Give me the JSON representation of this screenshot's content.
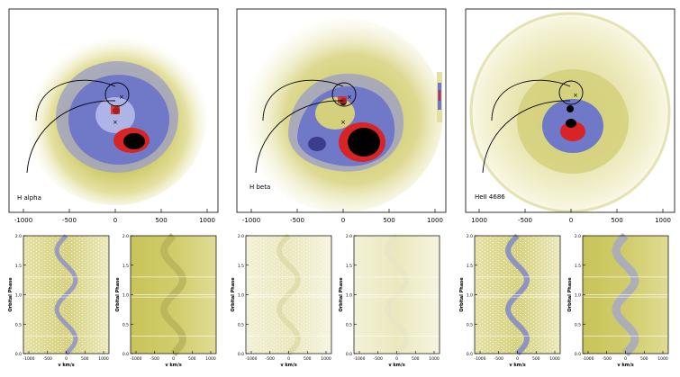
{
  "maps": [
    {
      "label": "H alpha",
      "x_ticks": [
        "-1000",
        "-500",
        "0",
        "500",
        "1000"
      ]
    },
    {
      "label": "H beta",
      "x_ticks": [
        "-1000",
        "-500",
        "0",
        "500",
        "1000"
      ]
    },
    {
      "label": "HeII 4686",
      "x_ticks": [
        "1000",
        "-500",
        "0",
        "500",
        "1000"
      ]
    }
  ],
  "trails": {
    "y_label": "Orbital Phase",
    "x_label": "v km/s",
    "y_ticks": [
      "0.0",
      "0.5",
      "1.0",
      "1.5",
      "2.0"
    ],
    "x_ticks": [
      "-1000",
      "-500",
      "0",
      "500",
      "1000"
    ],
    "panels": [
      "observed-halpha",
      "model-halpha",
      "observed-hbeta",
      "model-hbeta",
      "observed-heii",
      "model-heii"
    ]
  },
  "colors": {
    "outer": "#f4f1c8",
    "yellow": "#c8c45a",
    "olive": "#9d9a3a",
    "blue": "#7078c8",
    "lavender": "#aeb4e6",
    "red": "#d82424",
    "black": "#000000"
  }
}
